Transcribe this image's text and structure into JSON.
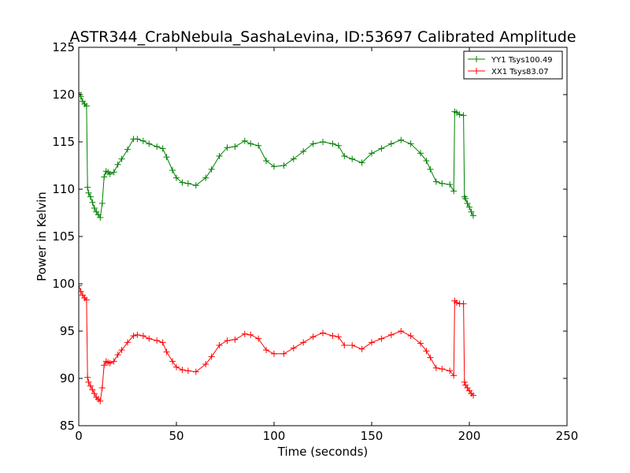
{
  "chart_data": {
    "type": "line",
    "title": "ASTR344_CrabNebula_SashaLevina, ID:53697 Calibrated Amplitude",
    "xlabel": "Time (seconds)",
    "ylabel": "Power in Kelvin",
    "xlim": [
      0,
      250
    ],
    "ylim": [
      85,
      125
    ],
    "xticks": [
      0,
      50,
      100,
      150,
      200,
      250
    ],
    "yticks": [
      85,
      90,
      95,
      100,
      105,
      110,
      115,
      120,
      125
    ],
    "grid": false,
    "legend_position": "top-right",
    "marker": "+",
    "series": [
      {
        "name": "YY1 Tsys100.49",
        "color": "#008000",
        "x": [
          0,
          1,
          2,
          3,
          4,
          4.5,
          5,
          6,
          7,
          8,
          9,
          10,
          11,
          12,
          13,
          14,
          15,
          16,
          18,
          20,
          22,
          25,
          28,
          30,
          33,
          36,
          40,
          43,
          45,
          48,
          50,
          53,
          56,
          60,
          65,
          68,
          72,
          76,
          80,
          85,
          88,
          92,
          96,
          100,
          105,
          110,
          115,
          120,
          125,
          130,
          133,
          136,
          140,
          145,
          150,
          155,
          160,
          165,
          170,
          175,
          178,
          180,
          183,
          186,
          190,
          192,
          192.5,
          193.5,
          195,
          197,
          197.5,
          198,
          199,
          200,
          201,
          202
        ],
        "y": [
          120.2,
          119.8,
          119.3,
          119.0,
          118.8,
          110.2,
          109.6,
          109.2,
          108.6,
          108.0,
          107.6,
          107.3,
          107.0,
          108.5,
          111.3,
          111.9,
          111.8,
          111.6,
          111.8,
          112.6,
          113.2,
          114.2,
          115.3,
          115.3,
          115.1,
          114.8,
          114.5,
          114.3,
          113.4,
          112.0,
          111.2,
          110.7,
          110.6,
          110.4,
          111.2,
          112.1,
          113.5,
          114.4,
          114.5,
          115.1,
          114.8,
          114.6,
          113.0,
          112.4,
          112.5,
          113.2,
          114.0,
          114.8,
          115.0,
          114.8,
          114.6,
          113.5,
          113.2,
          112.8,
          113.8,
          114.3,
          114.8,
          115.2,
          114.8,
          113.8,
          113.0,
          112.1,
          110.8,
          110.6,
          110.5,
          109.8,
          118.2,
          118.1,
          117.9,
          117.8,
          109.2,
          109.0,
          108.5,
          108.1,
          107.6,
          107.2
        ]
      },
      {
        "name": "XX1 Tsys83.07",
        "color": "#ff0000",
        "x": [
          0,
          1,
          2,
          3,
          4,
          4.5,
          5,
          6,
          7,
          8,
          9,
          10,
          11,
          12,
          13,
          14,
          15,
          16,
          18,
          20,
          22,
          25,
          28,
          30,
          33,
          36,
          40,
          43,
          45,
          48,
          50,
          53,
          56,
          60,
          65,
          68,
          72,
          76,
          80,
          85,
          88,
          92,
          96,
          100,
          105,
          110,
          115,
          120,
          125,
          130,
          133,
          136,
          140,
          145,
          150,
          155,
          160,
          165,
          170,
          175,
          178,
          180,
          183,
          186,
          190,
          192,
          192.5,
          193.5,
          195,
          197,
          197.5,
          198,
          199,
          200,
          201,
          202
        ],
        "y": [
          99.8,
          99.2,
          98.8,
          98.5,
          98.3,
          90.1,
          89.6,
          89.2,
          88.8,
          88.4,
          88.0,
          87.8,
          87.6,
          89.0,
          91.4,
          91.8,
          91.7,
          91.6,
          91.8,
          92.5,
          93.0,
          93.8,
          94.5,
          94.6,
          94.5,
          94.2,
          94.0,
          93.8,
          92.8,
          91.8,
          91.2,
          90.9,
          90.8,
          90.7,
          91.5,
          92.3,
          93.5,
          94.0,
          94.1,
          94.7,
          94.6,
          94.2,
          93.0,
          92.6,
          92.6,
          93.2,
          93.8,
          94.4,
          94.8,
          94.5,
          94.4,
          93.5,
          93.5,
          93.1,
          93.8,
          94.2,
          94.6,
          95.0,
          94.5,
          93.7,
          92.9,
          92.2,
          91.1,
          91.0,
          90.8,
          90.3,
          98.2,
          98.0,
          97.9,
          97.9,
          89.6,
          89.3,
          89.0,
          88.7,
          88.4,
          88.2
        ]
      }
    ]
  }
}
